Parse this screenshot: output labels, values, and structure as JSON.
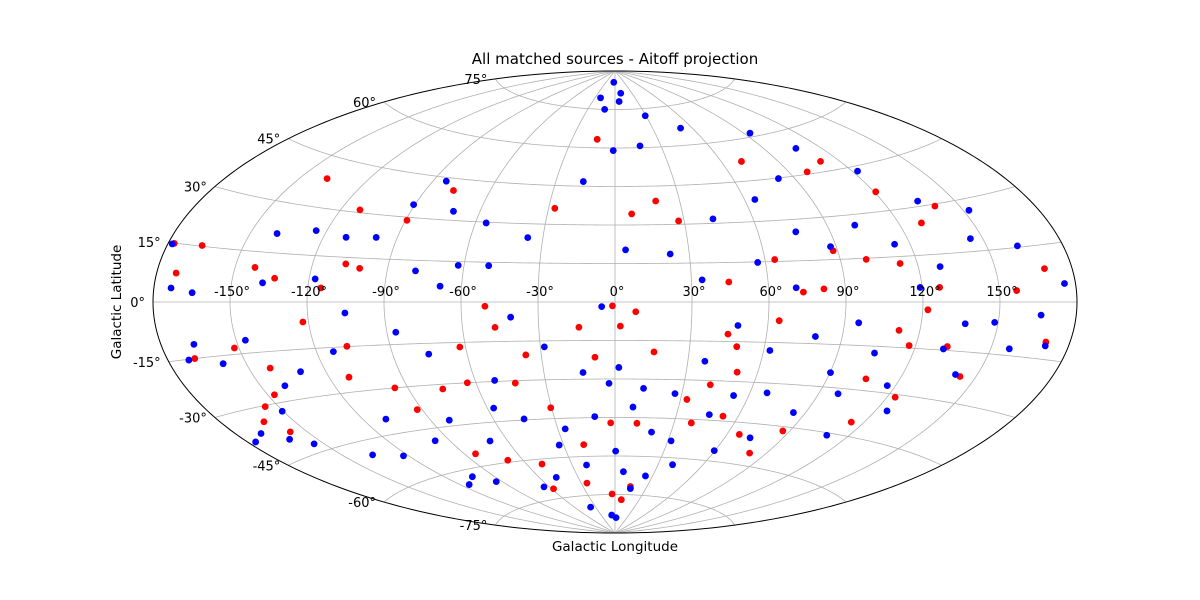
{
  "chart_data": {
    "type": "scatter",
    "projection": "aitoff",
    "title": "All matched sources - Aitoff projection",
    "xlabel": "Galactic Longitude",
    "ylabel": "Galactic Latitude",
    "xlim": [
      -180,
      180
    ],
    "ylim": [
      -90,
      90
    ],
    "grid": true,
    "x_ticks": [
      "-150°",
      "-120°",
      "-90°",
      "-60°",
      "-30°",
      "0°",
      "30°",
      "60°",
      "90°",
      "120°",
      "150°"
    ],
    "y_ticks": [
      "-75°",
      "-60°",
      "-45°",
      "-30°",
      "-15°",
      "0°",
      "15°",
      "30°",
      "45°",
      "60°",
      "75°"
    ],
    "colors": {
      "series_a": "#ff0000",
      "series_b": "#0000ff"
    },
    "series": [
      {
        "color": "#ff0000",
        "points": [
          [
            -177.6,
            14.9
          ],
          [
            -172.4,
            7.5
          ],
          [
            -169.2,
            -15
          ],
          [
            -166.3,
            15.2
          ],
          [
            -162.6,
            -34
          ],
          [
            -157.1,
            -38.1
          ],
          [
            -155.4,
            -30.3
          ],
          [
            -151.8,
            -13.2
          ],
          [
            -147.3,
            -27.6
          ],
          [
            -142.2,
            10.3
          ],
          [
            -141.5,
            -19.9
          ],
          [
            -138.3,
            38.7
          ],
          [
            -133.5,
            7.3
          ],
          [
            -122.2,
            -6.4
          ],
          [
            -114.9,
            4.6
          ],
          [
            -111.9,
            30.9
          ],
          [
            -111.9,
            -25.1
          ],
          [
            -107.2,
            -14.9
          ],
          [
            -106.9,
            12.8
          ],
          [
            -101,
            11.5
          ],
          [
            -95.5,
            -30
          ],
          [
            -92.2,
            -38.1
          ],
          [
            -89.4,
            28.9
          ],
          [
            -83.9,
            -55.5
          ],
          [
            -77.1,
            40.7
          ],
          [
            -75.4,
            -31.7
          ],
          [
            -69.3,
            -59.2
          ],
          [
            -63.7,
            -30
          ],
          [
            -62.3,
            -16.7
          ],
          [
            -58.2,
            -71.3
          ],
          [
            -50.7,
            -1.6
          ],
          [
            -49.9,
            -61.9
          ],
          [
            -47.2,
            -9.6
          ],
          [
            -43.2,
            -30.9
          ],
          [
            -36.3,
            -20.3
          ],
          [
            -30.4,
            -40.8
          ],
          [
            -27.2,
            36.2
          ],
          [
            -25,
            -70.3
          ],
          [
            -18.3,
            -55.4
          ],
          [
            -14.2,
            -9.8
          ],
          [
            -12.5,
            63.3
          ],
          [
            -8.2,
            -21.5
          ],
          [
            -3.2,
            -74.8
          ],
          [
            -2.2,
            -47.1
          ],
          [
            -1,
            -1.5
          ],
          [
            2.1,
            -9.4
          ],
          [
            7.4,
            34.3
          ],
          [
            7.9,
            -77
          ],
          [
            8.1,
            -3.8
          ],
          [
            11.2,
            -47.2
          ],
          [
            14.6,
            -71.8
          ],
          [
            15.8,
            -19.4
          ],
          [
            18.9,
            39.2
          ],
          [
            27.6,
            31.3
          ],
          [
            32.9,
            -37.5
          ],
          [
            38.7,
            -46.4
          ],
          [
            41.5,
            -31.6
          ],
          [
            44.6,
            7.6
          ],
          [
            44.7,
            -12.2
          ],
          [
            48.9,
            -16.9
          ],
          [
            51.4,
            -26.5
          ],
          [
            52.7,
            -43.2
          ],
          [
            63.9,
            15.7
          ],
          [
            64.3,
            -6.9
          ],
          [
            66.4,
            -49.4
          ],
          [
            70.9,
            52.2
          ],
          [
            73.5,
            3.6
          ],
          [
            80.8,
            -55.5
          ],
          [
            81.6,
            4.7
          ],
          [
            86.6,
            -46.5
          ],
          [
            88.2,
            18.1
          ],
          [
            98.8,
            45.8
          ],
          [
            100.3,
            14.6
          ],
          [
            106.1,
            -26.1
          ],
          [
            110.8,
            48.4
          ],
          [
            111.8,
            -9.4
          ],
          [
            113.2,
            12.7
          ],
          [
            114.3,
            -40.5
          ],
          [
            117.4,
            -14.2
          ],
          [
            120.7,
            36.3
          ],
          [
            122,
            -2.5
          ],
          [
            123.4,
            -30.9
          ],
          [
            126.8,
            4.6
          ],
          [
            129.3,
            25
          ],
          [
            132.6,
            -13.8
          ],
          [
            140,
            29.4
          ],
          [
            143.6,
            -22.3
          ],
          [
            156.7,
            3.2
          ],
          [
            169.2,
            8.8
          ],
          [
            170.6,
            -10.5
          ]
        ]
      },
      {
        "color": "#0000ff",
        "points": [
          [
            -178.3,
            14.7
          ],
          [
            -176.8,
            -37.9
          ],
          [
            -173.3,
            3.6
          ],
          [
            -171.8,
            -15.2
          ],
          [
            -169.8,
            -36.5
          ],
          [
            -167.1,
            -11.3
          ],
          [
            -164.9,
            2.5
          ],
          [
            -161.6,
            -39.8
          ],
          [
            -159.1,
            -17.2
          ],
          [
            -154.3,
            -42.6
          ],
          [
            -150.4,
            -32.4
          ],
          [
            -146.4,
            -11.2
          ],
          [
            -140.2,
            -25.5
          ],
          [
            -139.3,
            20.8
          ],
          [
            -137.9,
            5.8
          ],
          [
            -136.3,
            -49.5
          ],
          [
            -130.2,
            -21.9
          ],
          [
            -124.3,
            22.9
          ],
          [
            -122.5,
            -51.9
          ],
          [
            -117.6,
            7.5
          ],
          [
            -114.5,
            -64.6
          ],
          [
            -113.3,
            -16.4
          ],
          [
            -110.8,
            21.6
          ],
          [
            -109.8,
            -39.9
          ],
          [
            -105.4,
            -3.7
          ],
          [
            -103.9,
            -62.6
          ],
          [
            -98.6,
            22.3
          ],
          [
            -97.3,
            -49.2
          ],
          [
            -94.1,
            -65.7
          ],
          [
            -90.6,
            34.5
          ],
          [
            -86.5,
            -10.7
          ],
          [
            -83.7,
            43.7
          ],
          [
            -81.3,
            -42.9
          ],
          [
            -78.8,
            11.2
          ],
          [
            -75.5,
            -18.9
          ],
          [
            -71.6,
            33.3
          ],
          [
            -69.4,
            -51.7
          ],
          [
            -68.4,
            5.8
          ],
          [
            -64.5,
            -70.2
          ],
          [
            -62.3,
            13.6
          ],
          [
            -57.1,
            -39.9
          ],
          [
            -55.4,
            29.7
          ],
          [
            -51.7,
            -29.6
          ],
          [
            -50.2,
            13.7
          ],
          [
            -47.2,
            -67.3
          ],
          [
            -45.1,
            -44.6
          ],
          [
            -40.8,
            -5.8
          ],
          [
            -37.4,
            -79.5
          ],
          [
            -36.3,
            24.7
          ],
          [
            -32.6,
            -55.2
          ],
          [
            -28.4,
            -17.3
          ],
          [
            -26.2,
            -49.1
          ],
          [
            -21.8,
            79.4
          ],
          [
            -20,
            -63.3
          ],
          [
            -16.1,
            46.8
          ],
          [
            -13.5,
            -27.4
          ],
          [
            -11.5,
            75
          ],
          [
            -10,
            -44.6
          ],
          [
            -7.3,
            -83
          ],
          [
            -5.2,
            -1.8
          ],
          [
            -4.1,
            85.6
          ],
          [
            -2.6,
            -31.7
          ],
          [
            -1.1,
            59
          ],
          [
            0.4,
            -58.1
          ],
          [
            1.6,
            -25.5
          ],
          [
            2.6,
            -84
          ],
          [
            4.3,
            20.3
          ],
          [
            5.6,
            78.1
          ],
          [
            6.4,
            -66.1
          ],
          [
            8.5,
            -40.9
          ],
          [
            10.3,
            81.3
          ],
          [
            12.6,
            -33.6
          ],
          [
            15.1,
            -72.6
          ],
          [
            16.4,
            60.7
          ],
          [
            19.6,
            -50.5
          ],
          [
            22.3,
            18.6
          ],
          [
            24.4,
            -67.5
          ],
          [
            26.9,
            -35.4
          ],
          [
            29.3,
            72.2
          ],
          [
            31.8,
            -53.6
          ],
          [
            34.2,
            8.5
          ],
          [
            37,
            -22.7
          ],
          [
            39.9,
            -62.6
          ],
          [
            42.7,
            31.7
          ],
          [
            45.8,
            -42.9
          ],
          [
            48.3,
            -8.9
          ],
          [
            51.4,
            66.5
          ],
          [
            53.3,
            -35.3
          ],
          [
            56.9,
            14.8
          ],
          [
            59.6,
            -56.1
          ],
          [
            62.5,
            -18
          ],
          [
            64.7,
            38.1
          ],
          [
            67.5,
            -33.6
          ],
          [
            70.8,
            5.2
          ],
          [
            73.3,
            -50.2
          ],
          [
            75.8,
            25.5
          ],
          [
            79.4,
            -12.4
          ],
          [
            82.2,
            44.8
          ],
          [
            84.5,
            -39.8
          ],
          [
            87.7,
            19.6
          ],
          [
            90.2,
            -24.9
          ],
          [
            93.8,
            61.3
          ],
          [
            95.5,
            -7.2
          ],
          [
            98.3,
            -31.9
          ],
          [
            101.5,
            26.4
          ],
          [
            104.7,
            -17.3
          ],
          [
            107.1,
            53.8
          ],
          [
            109.6,
            -45.8
          ],
          [
            113.8,
            19.1
          ],
          [
            116.6,
            -27.6
          ],
          [
            119.2,
            4.7
          ],
          [
            122.4,
            43.4
          ],
          [
            125,
            -35.4
          ],
          [
            128.6,
            11.1
          ],
          [
            131.4,
            -14.6
          ],
          [
            134.7,
            31.6
          ],
          [
            137.2,
            -6.6
          ],
          [
            141.3,
            -21.9
          ],
          [
            145.1,
            18.8
          ],
          [
            148.6,
            -5.9
          ],
          [
            152.3,
            26.7
          ],
          [
            157.3,
            -13.1
          ],
          [
            162.1,
            15.4
          ],
          [
            166.3,
            -3.5
          ],
          [
            170.9,
            -11.5
          ],
          [
            175.7,
            4.7
          ]
        ]
      }
    ]
  }
}
